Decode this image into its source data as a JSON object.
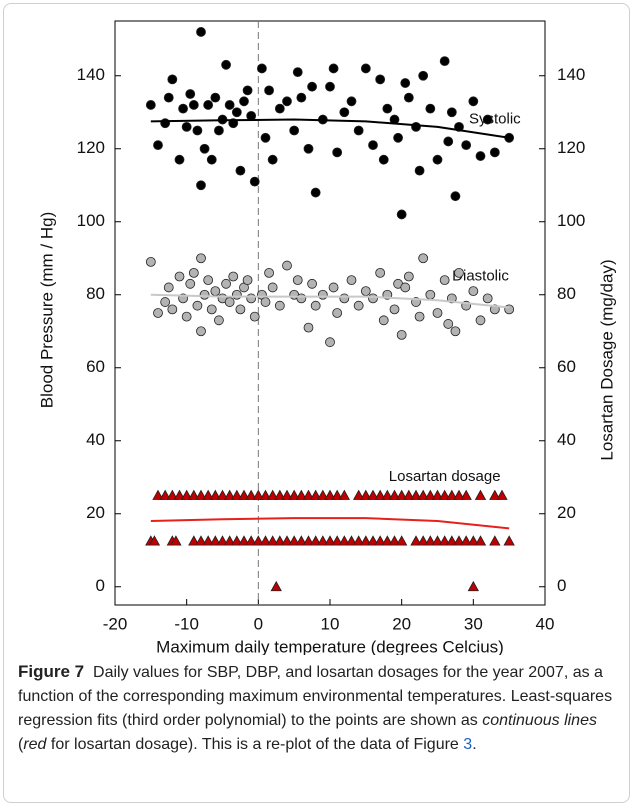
{
  "chart_data": {
    "type": "scatter",
    "xlabel": "Maximum daily temperature (degrees Celcius)",
    "ylabel": "Blood Pressure (mm / Hg)",
    "y2label": "Losartan Dosage (mg/day)",
    "xlim": [
      -20,
      40
    ],
    "xticks": [
      -20,
      -10,
      0,
      10,
      20,
      30,
      40
    ],
    "ylim": [
      -5,
      155
    ],
    "yticks": [
      0,
      20,
      40,
      60,
      80,
      100,
      120,
      140
    ],
    "y2lim": [
      -5,
      155
    ],
    "y2ticks": [
      0,
      20,
      40,
      60,
      80,
      100,
      120,
      140
    ],
    "vline": 0,
    "annotations": [
      {
        "text": "Systolic",
        "x": 33,
        "y": 128
      },
      {
        "text": "Diastolic",
        "x": 31,
        "y": 85
      },
      {
        "text": "Losartan dosage",
        "x": 26,
        "y": 30
      }
    ],
    "series": [
      {
        "name": "SBP",
        "mode": "markers",
        "marker": "circle",
        "color": "#000000",
        "x": [
          -15,
          -14,
          -13,
          -12.5,
          -12,
          -11,
          -10.5,
          -10,
          -9.5,
          -9,
          -8.5,
          -8,
          -8,
          -7.5,
          -7,
          -6.5,
          -6,
          -5.5,
          -5,
          -4.5,
          -4,
          -3.5,
          -3,
          -2.5,
          -2,
          -1.5,
          -1,
          -0.5,
          0.5,
          1,
          1.5,
          2,
          3,
          4,
          5,
          5.5,
          6,
          7,
          7.5,
          8,
          9,
          10,
          10.5,
          11,
          12,
          13,
          14,
          15,
          16,
          17,
          17.5,
          18,
          19,
          19.5,
          20,
          20.5,
          21,
          22,
          22.5,
          23,
          24,
          25,
          26,
          26.5,
          27,
          27.5,
          28,
          29,
          30,
          31,
          32,
          33,
          35
        ],
        "values": [
          132,
          121,
          127,
          134,
          139,
          117,
          131,
          126,
          135,
          132,
          125,
          152,
          110,
          120,
          132,
          117,
          134,
          125,
          128,
          143,
          132,
          127,
          130,
          114,
          133,
          136,
          129,
          111,
          142,
          123,
          136,
          117,
          131,
          133,
          125,
          141,
          134,
          120,
          137,
          108,
          128,
          137,
          142,
          119,
          130,
          133,
          125,
          142,
          121,
          139,
          117,
          131,
          128,
          123,
          102,
          138,
          134,
          126,
          114,
          140,
          131,
          117,
          144,
          122,
          130,
          107,
          126,
          121,
          133,
          118,
          128,
          119,
          123
        ]
      },
      {
        "name": "DBP",
        "mode": "markers",
        "marker": "circle",
        "color": "#b3b3b3",
        "x": [
          -15,
          -14,
          -13,
          -12.5,
          -12,
          -11,
          -10.5,
          -10,
          -9.5,
          -9,
          -8.5,
          -8,
          -8,
          -7.5,
          -7,
          -6.5,
          -6,
          -5.5,
          -5,
          -4.5,
          -4,
          -3.5,
          -3,
          -2.5,
          -2,
          -1.5,
          -1,
          -0.5,
          0.5,
          1,
          1.5,
          2,
          3,
          4,
          5,
          5.5,
          6,
          7,
          7.5,
          8,
          9,
          10,
          10.5,
          11,
          12,
          13,
          14,
          15,
          16,
          17,
          17.5,
          18,
          19,
          19.5,
          20,
          20.5,
          21,
          22,
          22.5,
          23,
          24,
          25,
          26,
          26.5,
          27,
          27.5,
          28,
          29,
          30,
          31,
          32,
          33,
          35
        ],
        "values": [
          89,
          75,
          78,
          82,
          76,
          85,
          79,
          74,
          83,
          86,
          77,
          90,
          70,
          80,
          84,
          76,
          81,
          73,
          79,
          83,
          78,
          85,
          80,
          76,
          82,
          84,
          79,
          74,
          80,
          78,
          86,
          82,
          77,
          88,
          80,
          84,
          79,
          71,
          83,
          77,
          80,
          67,
          82,
          75,
          79,
          84,
          77,
          81,
          79,
          86,
          73,
          80,
          76,
          83,
          69,
          82,
          85,
          78,
          74,
          90,
          80,
          75,
          84,
          72,
          79,
          70,
          86,
          77,
          81,
          73,
          79,
          76,
          76
        ]
      },
      {
        "name": "Losartan",
        "mode": "markers",
        "marker": "triangle",
        "color": "#c00000",
        "axis": "y2",
        "x": [
          -14,
          -13,
          -12,
          -11,
          -10,
          -9,
          -8,
          -7,
          -6,
          -5,
          -4,
          -3,
          -2,
          -1,
          0,
          1,
          2,
          3,
          4,
          5,
          6,
          7,
          8,
          9,
          10,
          11,
          12,
          14,
          15,
          16,
          17,
          18,
          19,
          20,
          21,
          22,
          23,
          24,
          25,
          26,
          27,
          28,
          29,
          31,
          33,
          34,
          -15,
          -14.5,
          -12,
          -11.5,
          -9,
          -8,
          -7,
          -6,
          -5,
          -4,
          -3,
          -2,
          -1,
          0,
          1,
          2,
          3,
          4,
          5,
          6,
          7,
          8,
          9,
          10,
          11,
          12,
          13,
          14,
          15,
          16,
          17,
          18,
          19,
          20,
          22,
          23,
          24,
          25,
          26,
          27,
          28,
          29,
          30,
          31,
          33,
          35,
          2.5,
          30
        ],
        "values": [
          25,
          25,
          25,
          25,
          25,
          25,
          25,
          25,
          25,
          25,
          25,
          25,
          25,
          25,
          25,
          25,
          25,
          25,
          25,
          25,
          25,
          25,
          25,
          25,
          25,
          25,
          25,
          25,
          25,
          25,
          25,
          25,
          25,
          25,
          25,
          25,
          25,
          25,
          25,
          25,
          25,
          25,
          25,
          25,
          25,
          25,
          12.5,
          12.5,
          12.5,
          12.5,
          12.5,
          12.5,
          12.5,
          12.5,
          12.5,
          12.5,
          12.5,
          12.5,
          12.5,
          12.5,
          12.5,
          12.5,
          12.5,
          12.5,
          12.5,
          12.5,
          12.5,
          12.5,
          12.5,
          12.5,
          12.5,
          12.5,
          12.5,
          12.5,
          12.5,
          12.5,
          12.5,
          12.5,
          12.5,
          12.5,
          12.5,
          12.5,
          12.5,
          12.5,
          12.5,
          12.5,
          12.5,
          12.5,
          12.5,
          12.5,
          12.5,
          12.5,
          0,
          0
        ]
      },
      {
        "name": "SBP fit",
        "mode": "line",
        "color": "#000000",
        "x": [
          -15,
          -5,
          5,
          15,
          25,
          35
        ],
        "values": [
          127.5,
          127.8,
          128,
          127.5,
          126,
          123
        ]
      },
      {
        "name": "DBP fit",
        "mode": "line",
        "color": "#c8c8c8",
        "x": [
          -15,
          -5,
          5,
          15,
          25,
          35
        ],
        "values": [
          80,
          79.5,
          79.5,
          79.5,
          78.5,
          76.5
        ]
      },
      {
        "name": "Losartan fit",
        "mode": "line",
        "color": "#e8201c",
        "axis": "y2",
        "x": [
          -15,
          -5,
          5,
          15,
          25,
          35
        ],
        "values": [
          18,
          18.5,
          18.8,
          18.8,
          18,
          16
        ]
      }
    ]
  },
  "caption": {
    "label": "Figure 7",
    "text1": "Daily values for SBP, DBP, and losartan dosages for the year 2007, as a function of the corresponding maximum environmental temperatures. Least-squares regression fits (third order polynomial) to the points are shown as",
    "em1": "continuous lines",
    "text2": "(",
    "em2": "red",
    "text3": "for losartan dosage). This is a re-plot of the data of Figure",
    "ref": "3",
    "text4": "."
  }
}
